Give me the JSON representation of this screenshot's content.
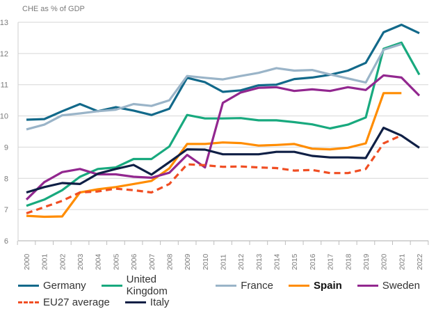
{
  "chart_data": {
    "type": "line",
    "title": "",
    "ylabel": "CHE as % of GDP",
    "xlabel": "",
    "ylim": [
      6,
      13
    ],
    "yticks": [
      "6",
      "7",
      "8",
      "9",
      "10",
      "11",
      "12",
      "13"
    ],
    "grid": true,
    "legend_position": "bottom",
    "x": [
      "2000",
      "2001",
      "2002",
      "2003",
      "2004",
      "2005",
      "2006",
      "2007",
      "2008",
      "2009",
      "2010",
      "2011",
      "2012",
      "2013",
      "2014",
      "2015",
      "2016",
      "2017",
      "2018",
      "2019",
      "2020",
      "2021",
      "2022"
    ],
    "series": [
      {
        "name": "Germany",
        "color": "#12698A",
        "dashed": false,
        "bold_label": false,
        "values": [
          9.88,
          9.9,
          10.15,
          10.38,
          10.15,
          10.28,
          10.17,
          10.03,
          10.23,
          11.22,
          11.08,
          10.77,
          10.82,
          10.98,
          11.0,
          11.18,
          11.23,
          11.32,
          11.45,
          11.7,
          12.68,
          12.92,
          12.65
        ]
      },
      {
        "name": "United Kingdom",
        "color": "#18A97E",
        "dashed": false,
        "bold_label": false,
        "values": [
          7.12,
          7.32,
          7.62,
          8.05,
          8.3,
          8.35,
          8.62,
          8.62,
          9.02,
          10.03,
          9.92,
          9.92,
          9.93,
          9.86,
          9.86,
          9.8,
          9.73,
          9.6,
          9.72,
          9.95,
          12.15,
          12.35,
          11.32
        ]
      },
      {
        "name": "France",
        "color": "#9AB4C8",
        "dashed": false,
        "bold_label": false,
        "values": [
          9.57,
          9.72,
          10.02,
          10.08,
          10.15,
          10.2,
          10.38,
          10.32,
          10.5,
          11.28,
          11.22,
          11.17,
          11.28,
          11.38,
          11.53,
          11.45,
          11.47,
          11.33,
          11.2,
          11.07,
          12.12,
          12.3,
          null
        ]
      },
      {
        "name": "Spain",
        "color": "#FF8C00",
        "dashed": false,
        "bold_label": true,
        "values": [
          6.8,
          6.77,
          6.78,
          7.55,
          7.65,
          7.72,
          7.82,
          7.92,
          8.32,
          9.1,
          9.1,
          9.15,
          9.13,
          9.05,
          9.07,
          9.1,
          8.95,
          8.93,
          8.98,
          9.12,
          10.73,
          10.73,
          null
        ]
      },
      {
        "name": "Sweden",
        "color": "#92278F",
        "dashed": false,
        "bold_label": false,
        "values": [
          7.32,
          7.88,
          8.2,
          8.3,
          8.13,
          8.13,
          8.05,
          8.02,
          8.18,
          8.75,
          8.35,
          10.42,
          10.75,
          10.9,
          10.92,
          10.8,
          10.85,
          10.8,
          10.92,
          10.83,
          11.3,
          11.23,
          10.65
        ]
      },
      {
        "name": "EU27 average",
        "color": "#F04E23",
        "dashed": true,
        "bold_label": false,
        "values": [
          6.88,
          7.08,
          7.28,
          7.55,
          7.58,
          7.67,
          7.62,
          7.55,
          7.82,
          8.45,
          8.42,
          8.37,
          8.38,
          8.35,
          8.33,
          8.25,
          8.27,
          8.17,
          8.17,
          8.3,
          9.12,
          9.38,
          null
        ]
      },
      {
        "name": "Italy",
        "color": "#0F1F45",
        "dashed": false,
        "bold_label": false,
        "values": [
          7.55,
          7.72,
          7.85,
          7.82,
          8.15,
          8.3,
          8.43,
          8.12,
          8.52,
          8.93,
          8.92,
          8.77,
          8.77,
          8.77,
          8.85,
          8.85,
          8.72,
          8.67,
          8.67,
          8.65,
          9.62,
          9.37,
          8.98
        ]
      }
    ]
  },
  "legend": {
    "rows": [
      [
        0,
        1,
        2,
        3,
        4
      ],
      [
        5,
        6
      ]
    ]
  }
}
